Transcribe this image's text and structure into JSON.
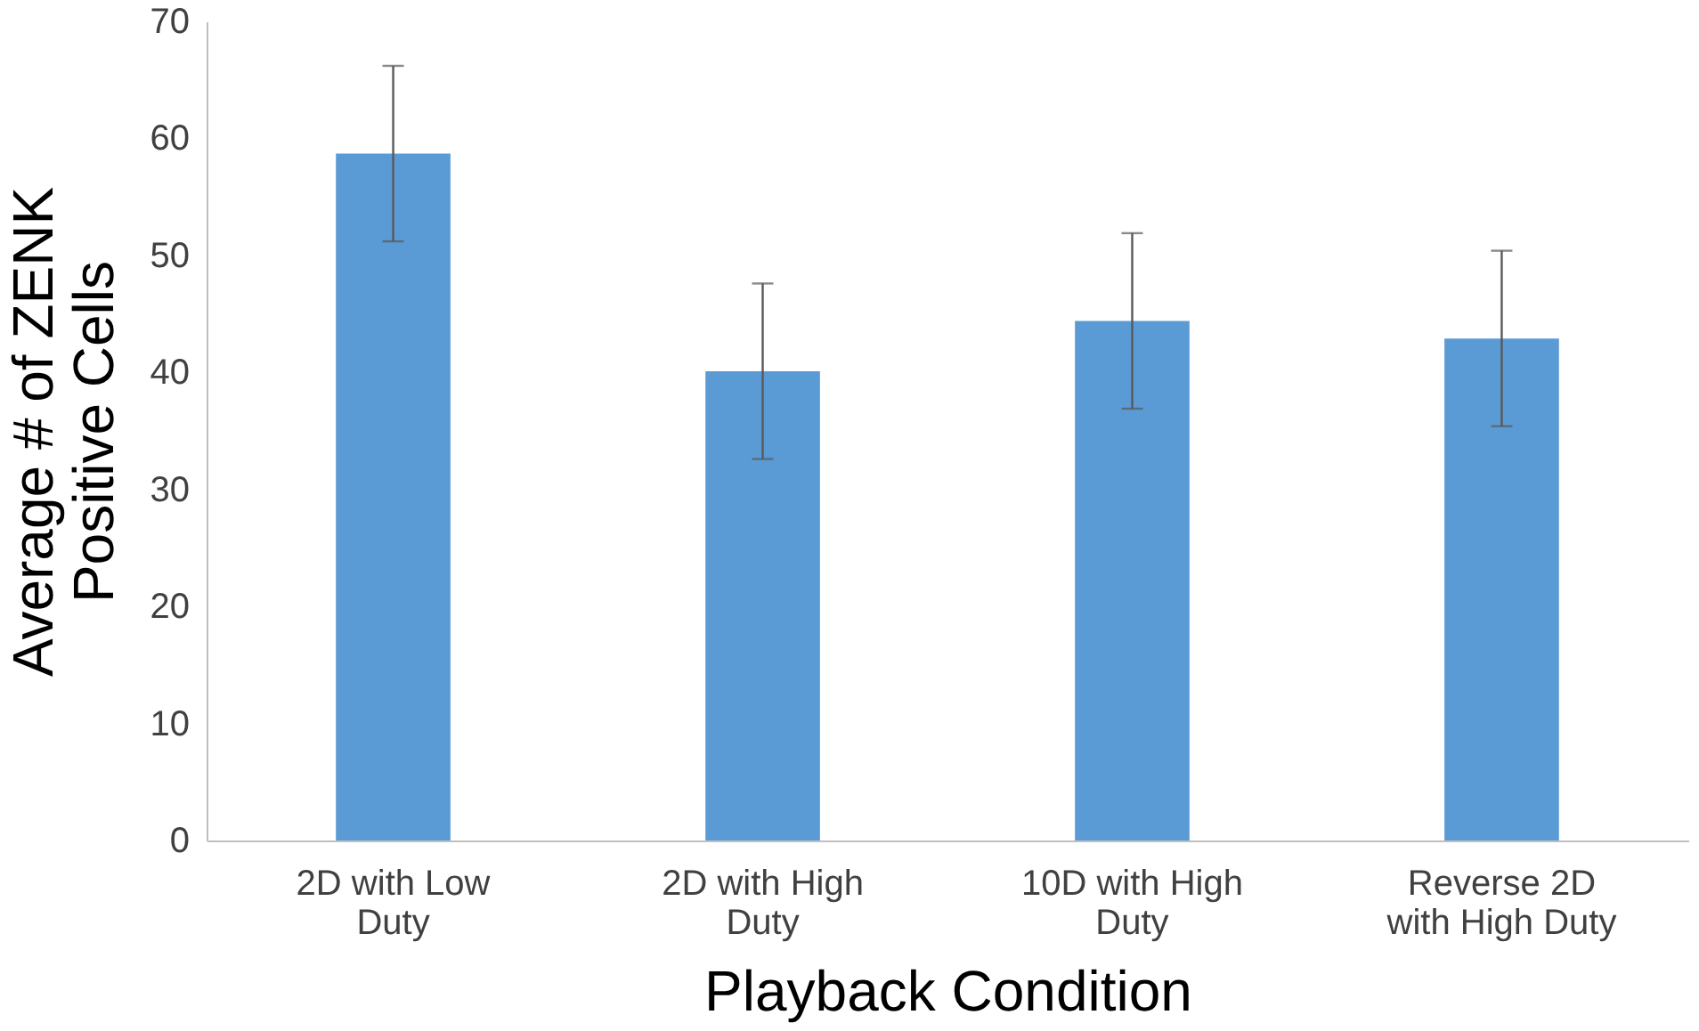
{
  "chart_data": {
    "type": "bar",
    "xlabel": "Playback Condition",
    "ylabel": "Average # of ZENK\nPositive Cells",
    "categories": [
      "2D with Low\nDuty",
      "2D with High\nDuty",
      "10D with High\nDuty",
      "Reverse 2D\nwith High Duty"
    ],
    "values": [
      58.7,
      40.1,
      44.4,
      42.9
    ],
    "errors": [
      7.5,
      7.5,
      7.5,
      7.5
    ],
    "color": "#5b9bd5",
    "ylim": [
      0,
      70
    ],
    "yticks": [
      0,
      10,
      20,
      30,
      40,
      50,
      60,
      70
    ],
    "grid": false
  }
}
